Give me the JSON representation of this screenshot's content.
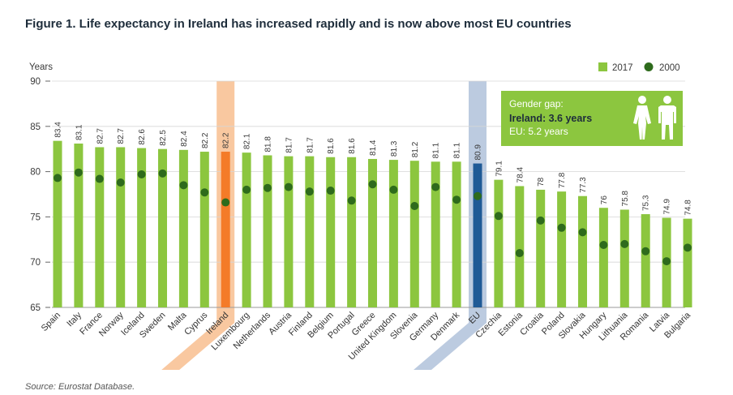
{
  "colors": {
    "bar_2017": "#8cc63f",
    "dot_2000": "#2e6b1c",
    "ireland_bar": "#f47b28",
    "ireland_band": "#f9c8a0",
    "eu_bar": "#1f5a96",
    "eu_band": "#bccbe0",
    "gender_box": "#8cc63f"
  },
  "gender_box": {
    "line1": "Gender gap:",
    "line2": "Ireland: 3.6 years",
    "line3": "EU: 5.2 years",
    "icon": "man-woman-icon"
  },
  "source": "Source: Eurostat Database.",
  "chart_data": {
    "type": "bar",
    "title": "Figure 1. Life expectancy in Ireland has increased rapidly and is now above most EU countries",
    "ylabel": "Years",
    "xlabel": "",
    "ylim": [
      65,
      90
    ],
    "yticks": [
      65,
      70,
      75,
      80,
      85,
      90
    ],
    "legend": [
      "2017",
      "2000"
    ],
    "legend_position": "top-right",
    "categories": [
      "Spain",
      "Italy",
      "France",
      "Norway",
      "Iceland",
      "Sweden",
      "Malta",
      "Cyprus",
      "Ireland",
      "Luxembourg",
      "Netherlands",
      "Austria",
      "Finland",
      "Belgium",
      "Portugal",
      "Greece",
      "United Kingdom",
      "Slovenia",
      "Germany",
      "Denmark",
      "EU",
      "Czechia",
      "Estonia",
      "Croatia",
      "Poland",
      "Slovakia",
      "Hungary",
      "Lithuania",
      "Romania",
      "Latvia",
      "Bulgaria"
    ],
    "value_labels": [
      "83.4",
      "83.1",
      "82.7",
      "82.7",
      "82.6",
      "82.5",
      "82.4",
      "82.2",
      "82.2",
      "82.1",
      "81.8",
      "81.7",
      "81.7",
      "81.6",
      "81.6",
      "81.4",
      "81.3",
      "81.2",
      "81.1",
      "81.1",
      "80.9",
      "79.1",
      "78.4",
      "78",
      "77.8",
      "77.3",
      "76",
      "75.8",
      "75.3",
      "74.9",
      "74.8"
    ],
    "series": [
      {
        "name": "2017",
        "kind": "bar",
        "values": [
          83.4,
          83.1,
          82.7,
          82.7,
          82.6,
          82.5,
          82.4,
          82.2,
          82.2,
          82.1,
          81.8,
          81.7,
          81.7,
          81.6,
          81.6,
          81.4,
          81.3,
          81.2,
          81.1,
          81.1,
          80.9,
          79.1,
          78.4,
          78.0,
          77.8,
          77.3,
          76.0,
          75.8,
          75.3,
          74.9,
          74.8
        ]
      },
      {
        "name": "2000",
        "kind": "dot",
        "values": [
          79.3,
          79.9,
          79.2,
          78.8,
          79.7,
          79.8,
          78.5,
          77.7,
          76.6,
          78.0,
          78.2,
          78.3,
          77.8,
          77.9,
          76.8,
          78.6,
          78.0,
          76.2,
          78.3,
          76.9,
          77.3,
          75.1,
          71.0,
          74.6,
          73.8,
          73.3,
          71.9,
          72.0,
          71.2,
          70.1,
          71.6
        ]
      }
    ],
    "highlights": [
      "Ireland",
      "EU"
    ]
  }
}
